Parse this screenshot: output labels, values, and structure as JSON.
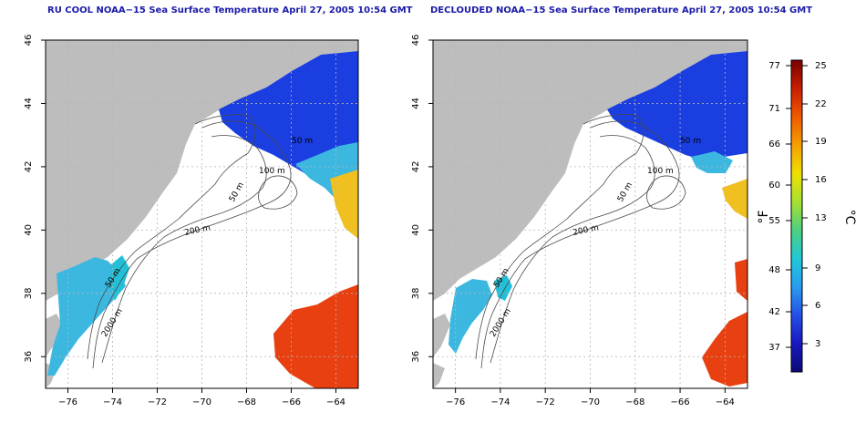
{
  "maps": [
    {
      "title": "RU COOL NOAA−15 Sea Surface Temperature April 27, 2005 10:54 GMT",
      "variant": "raw",
      "x_ticks": [
        "−76",
        "−74",
        "−72",
        "−70",
        "−68",
        "−66",
        "−64"
      ],
      "y_ticks": [
        "36",
        "38",
        "40",
        "42",
        "44",
        "46"
      ],
      "contour_labels": [
        "200 m",
        "100 m",
        "50 m",
        "2000 m",
        "50 m",
        "50 m"
      ]
    },
    {
      "title": "DECLOUDED NOAA−15 Sea Surface Temperature April 27, 2005 10:54 GMT",
      "variant": "declouded",
      "x_ticks": [
        "−76",
        "−74",
        "−72",
        "−70",
        "−68",
        "−66",
        "−64"
      ],
      "y_ticks": [
        "36",
        "38",
        "40",
        "42",
        "44",
        "46"
      ],
      "contour_labels": [
        "200 m",
        "100 m",
        "50 m",
        "2000 m",
        "50 m",
        "50 m"
      ]
    }
  ],
  "colorbar": {
    "fahrenheit_label": "°F",
    "celsius_label": "°C",
    "fahrenheit_ticks": [
      "77",
      "71",
      "66",
      "60",
      "55",
      "48",
      "42",
      "37"
    ],
    "celsius_ticks": [
      "25",
      "22",
      "19",
      "16",
      "13",
      "9",
      "6",
      "3"
    ],
    "colors": [
      "#7a0000",
      "#c81e00",
      "#f05a00",
      "#f5a000",
      "#eee000",
      "#a8e030",
      "#4ed080",
      "#20c8d8",
      "#2a9cf0",
      "#2450e8",
      "#1818c0",
      "#0a0a78"
    ]
  },
  "colors": {
    "title": "#1a1aa8",
    "land": "#bdbdbd",
    "water_background": "#ffffff",
    "grid": "#b5b5b5",
    "contour": "#4a4a4a"
  }
}
